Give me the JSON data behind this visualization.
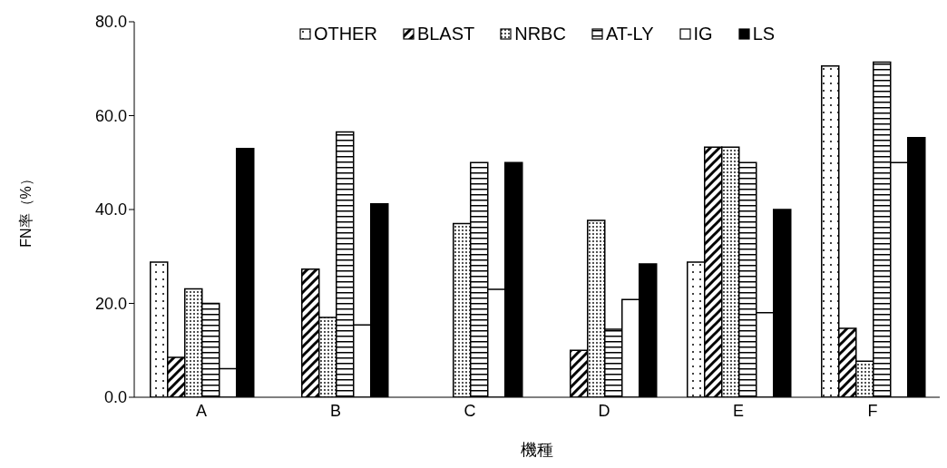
{
  "chart_data": {
    "type": "bar",
    "xlabel": "機種",
    "ylabel": "FN率（%）",
    "categories": [
      "A",
      "B",
      "C",
      "D",
      "E",
      "F"
    ],
    "series": [
      {
        "name": "OTHER",
        "color": "#000000",
        "values": [
          28.8,
          0,
          0,
          0,
          28.8,
          70.6
        ]
      },
      {
        "name": "BLAST",
        "color": "#000000",
        "values": [
          8.5,
          27.3,
          0,
          10,
          53.3,
          14.7
        ]
      },
      {
        "name": "NRBC",
        "color": "#000000",
        "values": [
          23.1,
          17,
          37,
          37.7,
          53.3,
          7.7
        ]
      },
      {
        "name": "AT-LY",
        "color": "#000000",
        "values": [
          20,
          56.5,
          50,
          14.5,
          50,
          71.4
        ]
      },
      {
        "name": "IG",
        "color": "#000000",
        "values": [
          6.1,
          15.4,
          23,
          20.8,
          18,
          50
        ]
      },
      {
        "name": "LS",
        "color": "#000000",
        "values": [
          53,
          41.2,
          50,
          28.4,
          40,
          55.3
        ]
      }
    ],
    "ylim": [
      0,
      80
    ],
    "yticks": [
      {
        "value": 0,
        "label": "0.0"
      },
      {
        "value": 20,
        "label": "20.0"
      },
      {
        "value": 40,
        "label": "40.0"
      },
      {
        "value": 60,
        "label": "60.0"
      },
      {
        "value": 80,
        "label": "80.0"
      }
    ],
    "legend": "top"
  }
}
